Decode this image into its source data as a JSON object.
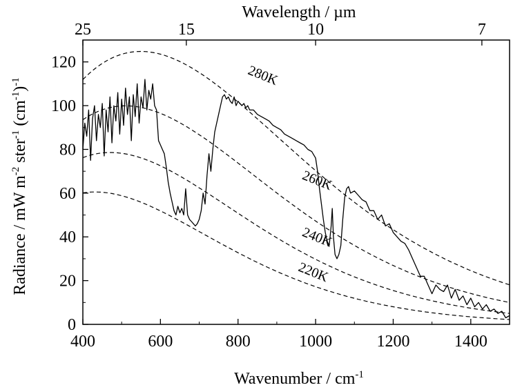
{
  "chart_data": {
    "type": "line",
    "xlabel": "Wavenumber / cm",
    "xlabel_sup": "-1",
    "ylabel_parts": [
      {
        "text": "Radiance / mW m",
        "sup": false
      },
      {
        "text": "-2",
        "sup": true
      },
      {
        "text": " ster",
        "sup": false
      },
      {
        "text": "-1",
        "sup": true
      },
      {
        "text": " (cm",
        "sup": false
      },
      {
        "text": "-1",
        "sup": true
      },
      {
        "text": ")",
        "sup": false
      },
      {
        "text": "-1",
        "sup": true
      }
    ],
    "top_axis_label": "Wavelength / µm",
    "xlim": [
      400,
      1500
    ],
    "ylim": [
      0,
      130
    ],
    "x_ticks": [
      400,
      600,
      800,
      1000,
      1200,
      1400
    ],
    "y_ticks": [
      0,
      20,
      40,
      60,
      80,
      100,
      120
    ],
    "top_ticks": [
      {
        "label": "25",
        "wavenumber": 400
      },
      {
        "label": "15",
        "wavenumber": 666.7
      },
      {
        "label": "10",
        "wavenumber": 1000
      },
      {
        "label": "7",
        "wavenumber": 1428.6
      }
    ],
    "reference_curves": [
      {
        "label": "280K",
        "temperature": 280,
        "label_at": [
          860,
          112
        ]
      },
      {
        "label": "260K",
        "temperature": 260,
        "label_at": [
          1000,
          64
        ]
      },
      {
        "label": "240K",
        "temperature": 240,
        "label_at": [
          1000,
          38
        ]
      },
      {
        "label": "220K",
        "temperature": 220,
        "label_at": [
          990,
          22
        ]
      }
    ],
    "measured_spectrum": [
      [
        400,
        80
      ],
      [
        405,
        92
      ],
      [
        410,
        86
      ],
      [
        415,
        98
      ],
      [
        420,
        75
      ],
      [
        425,
        94
      ],
      [
        430,
        100
      ],
      [
        435,
        84
      ],
      [
        440,
        96
      ],
      [
        445,
        90
      ],
      [
        450,
        101
      ],
      [
        455,
        77
      ],
      [
        460,
        98
      ],
      [
        465,
        88
      ],
      [
        470,
        104
      ],
      [
        475,
        83
      ],
      [
        480,
        100
      ],
      [
        485,
        93
      ],
      [
        490,
        106
      ],
      [
        495,
        87
      ],
      [
        500,
        103
      ],
      [
        505,
        91
      ],
      [
        510,
        108
      ],
      [
        515,
        96
      ],
      [
        520,
        104
      ],
      [
        525,
        84
      ],
      [
        530,
        105
      ],
      [
        535,
        95
      ],
      [
        540,
        110
      ],
      [
        545,
        92
      ],
      [
        550,
        104
      ],
      [
        555,
        99
      ],
      [
        560,
        112
      ],
      [
        565,
        98
      ],
      [
        570,
        107
      ],
      [
        575,
        103
      ],
      [
        580,
        110
      ],
      [
        585,
        100
      ],
      [
        590,
        98
      ],
      [
        595,
        84
      ],
      [
        600,
        82
      ],
      [
        605,
        80
      ],
      [
        610,
        78
      ],
      [
        615,
        72
      ],
      [
        620,
        65
      ],
      [
        625,
        60
      ],
      [
        630,
        56
      ],
      [
        635,
        52
      ],
      [
        640,
        50
      ],
      [
        645,
        54
      ],
      [
        650,
        51
      ],
      [
        655,
        53
      ],
      [
        660,
        50
      ],
      [
        665,
        62
      ],
      [
        670,
        50
      ],
      [
        675,
        48
      ],
      [
        680,
        47
      ],
      [
        685,
        46
      ],
      [
        690,
        45
      ],
      [
        695,
        46
      ],
      [
        700,
        48
      ],
      [
        705,
        52
      ],
      [
        710,
        60
      ],
      [
        715,
        55
      ],
      [
        720,
        68
      ],
      [
        725,
        78
      ],
      [
        730,
        70
      ],
      [
        735,
        80
      ],
      [
        740,
        88
      ],
      [
        745,
        92
      ],
      [
        750,
        96
      ],
      [
        755,
        100
      ],
      [
        760,
        104
      ],
      [
        765,
        105
      ],
      [
        770,
        103
      ],
      [
        775,
        104
      ],
      [
        780,
        102
      ],
      [
        785,
        101
      ],
      [
        790,
        104
      ],
      [
        795,
        100
      ],
      [
        800,
        102
      ],
      [
        805,
        101
      ],
      [
        810,
        100
      ],
      [
        815,
        101
      ],
      [
        820,
        99
      ],
      [
        825,
        100
      ],
      [
        830,
        98
      ],
      [
        840,
        98
      ],
      [
        850,
        96
      ],
      [
        860,
        95
      ],
      [
        870,
        94
      ],
      [
        880,
        93
      ],
      [
        890,
        91
      ],
      [
        900,
        90
      ],
      [
        910,
        89
      ],
      [
        920,
        87
      ],
      [
        930,
        86
      ],
      [
        940,
        85
      ],
      [
        950,
        84
      ],
      [
        960,
        83
      ],
      [
        970,
        82
      ],
      [
        980,
        80
      ],
      [
        990,
        79
      ],
      [
        1000,
        76
      ],
      [
        1005,
        70
      ],
      [
        1010,
        62
      ],
      [
        1015,
        55
      ],
      [
        1020,
        48
      ],
      [
        1025,
        42
      ],
      [
        1030,
        38
      ],
      [
        1035,
        36
      ],
      [
        1040,
        45
      ],
      [
        1043,
        53
      ],
      [
        1046,
        40
      ],
      [
        1050,
        32
      ],
      [
        1055,
        30
      ],
      [
        1060,
        32
      ],
      [
        1065,
        36
      ],
      [
        1070,
        48
      ],
      [
        1075,
        58
      ],
      [
        1080,
        62
      ],
      [
        1085,
        63
      ],
      [
        1090,
        60
      ],
      [
        1100,
        61
      ],
      [
        1110,
        59
      ],
      [
        1120,
        57
      ],
      [
        1130,
        56
      ],
      [
        1140,
        52
      ],
      [
        1150,
        52
      ],
      [
        1160,
        48
      ],
      [
        1170,
        50
      ],
      [
        1180,
        45
      ],
      [
        1190,
        46
      ],
      [
        1200,
        42
      ],
      [
        1210,
        40
      ],
      [
        1220,
        38
      ],
      [
        1230,
        37
      ],
      [
        1240,
        34
      ],
      [
        1250,
        30
      ],
      [
        1260,
        26
      ],
      [
        1270,
        22
      ],
      [
        1280,
        22
      ],
      [
        1290,
        18
      ],
      [
        1300,
        14
      ],
      [
        1310,
        18
      ],
      [
        1320,
        16
      ],
      [
        1330,
        15
      ],
      [
        1340,
        18
      ],
      [
        1350,
        12
      ],
      [
        1360,
        16
      ],
      [
        1370,
        11
      ],
      [
        1380,
        13
      ],
      [
        1390,
        9
      ],
      [
        1400,
        12
      ],
      [
        1410,
        8
      ],
      [
        1420,
        10
      ],
      [
        1430,
        7
      ],
      [
        1440,
        9
      ],
      [
        1450,
        6
      ],
      [
        1460,
        7
      ],
      [
        1470,
        5
      ],
      [
        1480,
        6
      ],
      [
        1490,
        3
      ],
      [
        1500,
        4
      ]
    ]
  }
}
